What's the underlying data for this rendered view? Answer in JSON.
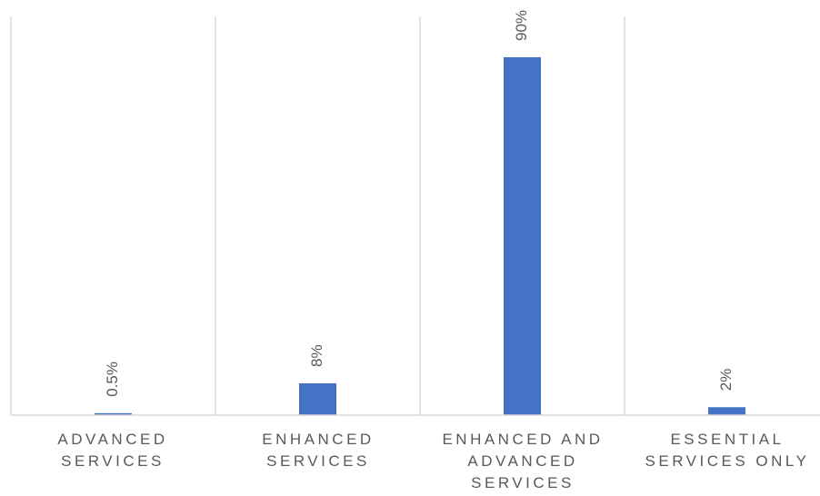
{
  "chart_data": {
    "type": "bar",
    "categories": [
      {
        "line1": "ADVANCED",
        "line2": "SERVICES",
        "line3": ""
      },
      {
        "line1": "ENHANCED",
        "line2": "SERVICES",
        "line3": ""
      },
      {
        "line1": "ENHANCED AND",
        "line2": "ADVANCED",
        "line3": "SERVICES"
      },
      {
        "line1": "ESSENTIAL",
        "line2": "SERVICES ONLY",
        "line3": ""
      }
    ],
    "values": [
      0.5,
      8,
      90,
      2
    ],
    "data_labels": [
      "0.5%",
      "8%",
      "90%",
      "2%"
    ],
    "ylim": [
      0,
      100
    ],
    "unit": "%",
    "grid": "vertical category separators",
    "colors": {
      "bar": "#4472C4",
      "grid": "#D9D9D9",
      "axis": "#D9D9D9",
      "text": "#595959"
    }
  }
}
